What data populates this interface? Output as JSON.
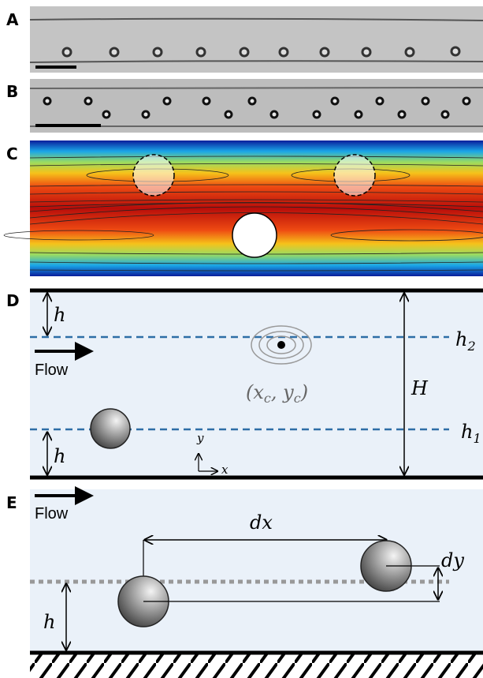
{
  "panels": {
    "a": {
      "label": "A"
    },
    "b": {
      "label": "B"
    },
    "c": {
      "label": "C"
    },
    "d": {
      "label": "D",
      "h_top": "h",
      "h_bottom": "h",
      "h2": {
        "base": "h",
        "sub": "2"
      },
      "h1": {
        "base": "h",
        "sub": "1"
      },
      "flow": "Flow",
      "H": "H",
      "center": {
        "open": "(",
        "x": "x",
        "x_sub": "c",
        "sep": ", ",
        "y": "y",
        "y_sub": "c",
        "close": ")"
      },
      "axis_y": "y",
      "axis_x": "x"
    },
    "e": {
      "label": "E",
      "flow": "Flow",
      "dx": "dx",
      "dy": "dy",
      "h": "h"
    }
  }
}
